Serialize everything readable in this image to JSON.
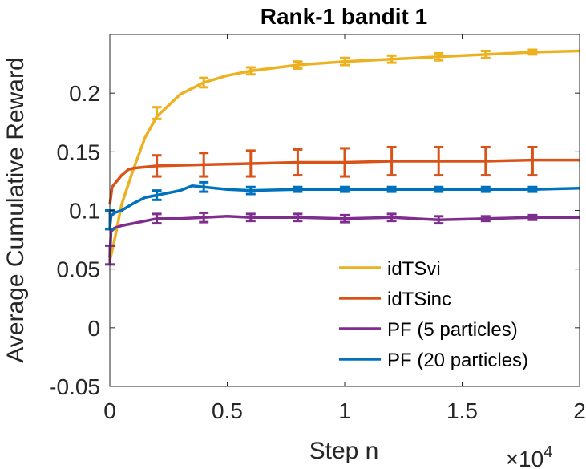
{
  "chart_data": {
    "type": "line",
    "title": "Rank-1 bandit 1",
    "xlabel": "Step n",
    "ylabel": "Average Cumulative Reward",
    "x_multiplier_label": "×10",
    "x_multiplier_exponent": "4",
    "xlim": [
      0,
      2
    ],
    "ylim": [
      -0.05,
      0.25
    ],
    "xticks": [
      0,
      0.5,
      1,
      1.5,
      2
    ],
    "xtick_labels": [
      "0",
      "0.5",
      "1",
      "1.5",
      "2"
    ],
    "yticks": [
      -0.05,
      0,
      0.05,
      0.1,
      0.15,
      0.2
    ],
    "ytick_labels": [
      "-0.05",
      "0",
      "0.05",
      "0.1",
      "0.15",
      "0.2"
    ],
    "legend_position": "bottom-right",
    "series": [
      {
        "name": "idTSvi",
        "color": "#EDB120",
        "x": [
          0,
          0.02,
          0.05,
          0.1,
          0.15,
          0.2,
          0.3,
          0.4,
          0.5,
          0.6,
          0.8,
          1.0,
          1.2,
          1.4,
          1.6,
          1.8,
          2.0
        ],
        "y": [
          0.057,
          0.075,
          0.105,
          0.135,
          0.162,
          0.18,
          0.199,
          0.209,
          0.215,
          0.219,
          0.224,
          0.227,
          0.229,
          0.231,
          0.233,
          0.235,
          0.236
        ],
        "err_x": [
          0.2,
          0.4,
          0.6,
          0.8,
          1.0,
          1.2,
          1.4,
          1.6,
          1.8
        ],
        "err_y": [
          0.183,
          0.209,
          0.219,
          0.224,
          0.227,
          0.229,
          0.231,
          0.233,
          0.235
        ],
        "err_half": [
          0.005,
          0.004,
          0.003,
          0.003,
          0.003,
          0.003,
          0.003,
          0.003,
          0.002
        ]
      },
      {
        "name": "idTSinc",
        "color": "#D95319",
        "x": [
          0,
          0.01,
          0.03,
          0.05,
          0.08,
          0.1,
          0.2,
          0.4,
          0.6,
          0.8,
          1.0,
          1.2,
          1.4,
          1.6,
          1.8,
          2.0
        ],
        "y": [
          0.105,
          0.12,
          0.125,
          0.13,
          0.135,
          0.136,
          0.138,
          0.139,
          0.14,
          0.141,
          0.141,
          0.142,
          0.142,
          0.142,
          0.143,
          0.143
        ],
        "err_x": [
          0.2,
          0.4,
          0.6,
          0.8,
          1.0,
          1.2,
          1.4,
          1.6,
          1.8
        ],
        "err_y": [
          0.138,
          0.139,
          0.14,
          0.141,
          0.141,
          0.142,
          0.142,
          0.142,
          0.142
        ],
        "err_half": [
          0.009,
          0.01,
          0.011,
          0.011,
          0.012,
          0.012,
          0.012,
          0.012,
          0.012
        ]
      },
      {
        "name": "PF (5 particles)",
        "color": "#7E2F8E",
        "x": [
          0,
          0.005,
          0.02,
          0.05,
          0.1,
          0.15,
          0.2,
          0.3,
          0.4,
          0.5,
          0.6,
          0.8,
          1.0,
          1.2,
          1.4,
          1.6,
          1.8,
          2.0
        ],
        "y": [
          0.06,
          0.082,
          0.085,
          0.087,
          0.089,
          0.091,
          0.093,
          0.093,
          0.094,
          0.095,
          0.094,
          0.094,
          0.093,
          0.094,
          0.092,
          0.093,
          0.094,
          0.094
        ],
        "err_x": [
          0.0,
          0.2,
          0.4,
          0.6,
          0.8,
          1.0,
          1.2,
          1.4,
          1.6,
          1.8
        ],
        "err_y": [
          0.062,
          0.093,
          0.094,
          0.094,
          0.094,
          0.093,
          0.094,
          0.092,
          0.093,
          0.094
        ],
        "err_half": [
          0.008,
          0.004,
          0.004,
          0.003,
          0.003,
          0.003,
          0.003,
          0.003,
          0.002,
          0.002
        ]
      },
      {
        "name": "PF (20 particles)",
        "color": "#0072BD",
        "x": [
          0,
          0.005,
          0.02,
          0.05,
          0.1,
          0.15,
          0.2,
          0.3,
          0.35,
          0.4,
          0.5,
          0.6,
          0.8,
          1.0,
          1.2,
          1.4,
          1.6,
          1.8,
          2.0
        ],
        "y": [
          0.085,
          0.095,
          0.098,
          0.1,
          0.106,
          0.111,
          0.113,
          0.117,
          0.121,
          0.12,
          0.118,
          0.117,
          0.118,
          0.118,
          0.118,
          0.118,
          0.118,
          0.118,
          0.119
        ],
        "err_x": [
          0.0,
          0.2,
          0.4,
          0.6,
          0.8,
          1.0,
          1.2,
          1.4,
          1.6,
          1.8
        ],
        "err_y": [
          0.092,
          0.113,
          0.12,
          0.117,
          0.118,
          0.118,
          0.118,
          0.118,
          0.118,
          0.118
        ],
        "err_half": [
          0.008,
          0.004,
          0.004,
          0.003,
          0.002,
          0.002,
          0.002,
          0.002,
          0.002,
          0.002
        ]
      }
    ]
  }
}
